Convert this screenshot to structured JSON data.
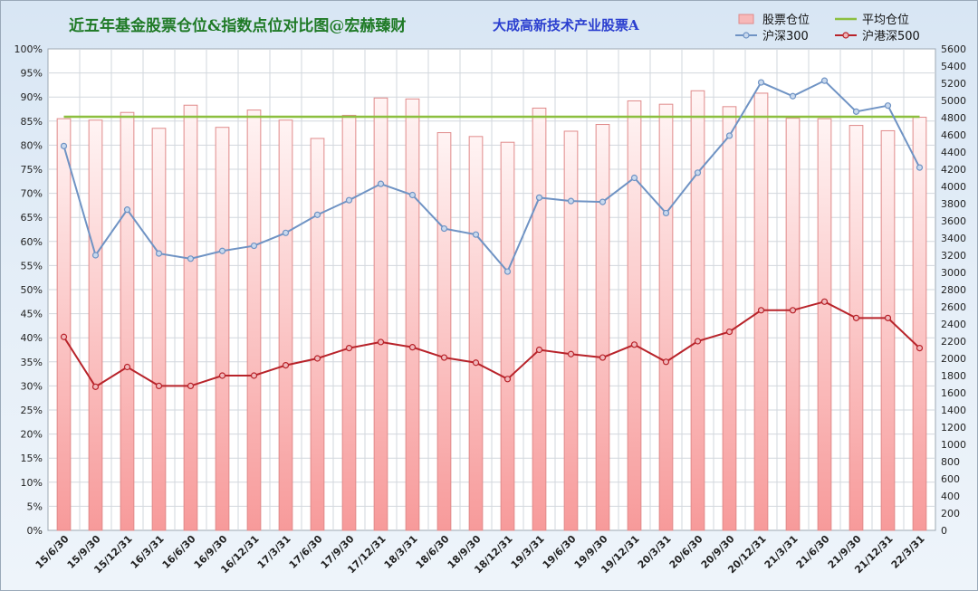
{
  "title": "近五年基金股票仓位&指数点位对比图@宏赫臻财",
  "fund_name": "大成高新技术产业股票A",
  "chart_data": {
    "type": "bar",
    "categories": [
      "15/6/30",
      "15/9/30",
      "15/12/31",
      "16/3/31",
      "16/6/30",
      "16/9/30",
      "16/12/31",
      "17/3/31",
      "17/6/30",
      "17/9/30",
      "17/12/31",
      "18/3/31",
      "18/6/30",
      "18/9/30",
      "18/12/31",
      "19/3/31",
      "19/6/30",
      "19/9/30",
      "19/12/31",
      "20/3/31",
      "20/6/30",
      "20/9/30",
      "20/12/31",
      "21/3/31",
      "21/6/30",
      "21/9/30",
      "21/12/31",
      "22/3/31"
    ],
    "series": [
      {
        "name": "股票仓位",
        "kind": "bar",
        "axis": "left",
        "unit": "%",
        "color": "#f7b8b8",
        "values": [
          85.5,
          85.2,
          86.8,
          83.5,
          88.3,
          83.7,
          87.3,
          85.2,
          81.4,
          86.2,
          89.8,
          89.6,
          82.6,
          81.8,
          80.6,
          87.7,
          82.9,
          84.3,
          89.2,
          88.5,
          91.3,
          88.0,
          90.8,
          85.6,
          85.5,
          84.1,
          83.0,
          85.8
        ]
      },
      {
        "name": "平均仓位",
        "kind": "line",
        "axis": "left",
        "unit": "%",
        "color": "#8cbf3f",
        "values": [
          85.9,
          85.9,
          85.9,
          85.9,
          85.9,
          85.9,
          85.9,
          85.9,
          85.9,
          85.9,
          85.9,
          85.9,
          85.9,
          85.9,
          85.9,
          85.9,
          85.9,
          85.9,
          85.9,
          85.9,
          85.9,
          85.9,
          85.9,
          85.9,
          85.9,
          85.9,
          85.9,
          85.9
        ]
      },
      {
        "name": "沪深300",
        "kind": "line",
        "axis": "right",
        "color": "#6f93c4",
        "marker": "#c9d9ee",
        "values": [
          4470,
          3200,
          3730,
          3220,
          3160,
          3250,
          3310,
          3460,
          3670,
          3840,
          4030,
          3900,
          3510,
          3440,
          3010,
          3870,
          3830,
          3820,
          4100,
          3690,
          4160,
          4590,
          5210,
          5050,
          5230,
          4870,
          4940,
          4220
        ]
      },
      {
        "name": "沪港深500",
        "kind": "line",
        "axis": "right",
        "color": "#b8232a",
        "marker": "#f0b8bb",
        "values": [
          2250,
          1670,
          1900,
          1680,
          1680,
          1800,
          1800,
          1920,
          2000,
          2120,
          2190,
          2130,
          2010,
          1950,
          1760,
          2100,
          2050,
          2010,
          2160,
          1960,
          2200,
          2310,
          2560,
          2560,
          2660,
          2470,
          2470,
          2120
        ]
      }
    ],
    "y_left": {
      "min": 0,
      "max": 100,
      "step": 5,
      "unit": "%"
    },
    "y_right": {
      "min": 0,
      "max": 5600,
      "step": 200
    },
    "legend": {
      "position": "top-right",
      "items": [
        "股票仓位",
        "平均仓位",
        "沪深300",
        "沪港深500"
      ]
    },
    "grid": true
  }
}
